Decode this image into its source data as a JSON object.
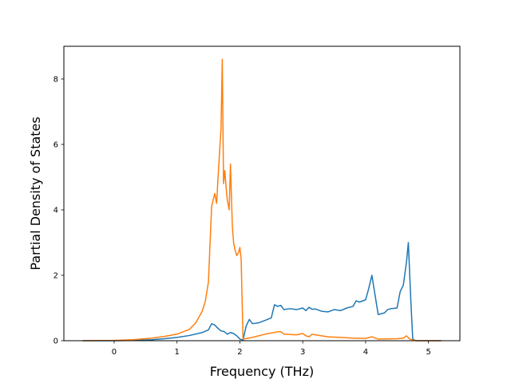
{
  "chart_data": {
    "type": "line",
    "title": "",
    "xlabel": "Frequency (THz)",
    "ylabel": "Partial Density of States",
    "xlim": [
      -0.8,
      5.5
    ],
    "ylim": [
      0,
      9
    ],
    "xticks": [
      0,
      1,
      2,
      3,
      4,
      5
    ],
    "yticks": [
      0,
      2,
      4,
      6,
      8
    ],
    "grid": false,
    "legend": "none",
    "series": [
      {
        "color": "#1f77b4",
        "x": [
          -0.5,
          0.0,
          0.3,
          0.6,
          0.8,
          1.0,
          1.2,
          1.4,
          1.5,
          1.55,
          1.6,
          1.65,
          1.7,
          1.75,
          1.8,
          1.85,
          1.9,
          1.95,
          2.0,
          2.05,
          2.1,
          2.15,
          2.2,
          2.3,
          2.4,
          2.5,
          2.55,
          2.6,
          2.65,
          2.7,
          2.8,
          2.9,
          3.0,
          3.05,
          3.1,
          3.15,
          3.2,
          3.3,
          3.4,
          3.5,
          3.6,
          3.7,
          3.8,
          3.85,
          3.9,
          4.0,
          4.05,
          4.1,
          4.15,
          4.2,
          4.3,
          4.35,
          4.4,
          4.5,
          4.55,
          4.6,
          4.65,
          4.68,
          4.72,
          4.75,
          4.8,
          5.0,
          5.2
        ],
        "y": [
          0.0,
          0.0,
          0.01,
          0.03,
          0.06,
          0.1,
          0.16,
          0.25,
          0.33,
          0.52,
          0.48,
          0.38,
          0.3,
          0.28,
          0.2,
          0.25,
          0.22,
          0.15,
          0.05,
          0.02,
          0.45,
          0.65,
          0.52,
          0.55,
          0.62,
          0.7,
          1.1,
          1.05,
          1.08,
          0.95,
          0.98,
          0.95,
          1.0,
          0.92,
          1.02,
          0.96,
          0.97,
          0.9,
          0.88,
          0.95,
          0.92,
          1.0,
          1.05,
          1.22,
          1.18,
          1.25,
          1.6,
          2.0,
          1.4,
          0.8,
          0.85,
          0.95,
          0.98,
          1.0,
          1.5,
          1.7,
          2.4,
          3.0,
          1.2,
          0.05,
          0.0,
          0.0,
          0.0
        ]
      },
      {
        "color": "#ff7f0e",
        "x": [
          -0.5,
          0.0,
          0.3,
          0.6,
          0.8,
          1.0,
          1.2,
          1.3,
          1.4,
          1.45,
          1.5,
          1.55,
          1.6,
          1.63,
          1.65,
          1.7,
          1.72,
          1.74,
          1.76,
          1.78,
          1.8,
          1.83,
          1.85,
          1.88,
          1.9,
          1.92,
          1.95,
          1.98,
          2.0,
          2.02,
          2.05,
          2.2,
          2.4,
          2.6,
          2.65,
          2.7,
          2.9,
          3.0,
          3.05,
          3.1,
          3.15,
          3.2,
          3.4,
          3.6,
          3.8,
          4.0,
          4.1,
          4.15,
          4.2,
          4.5,
          4.6,
          4.65,
          4.7,
          4.8,
          5.0,
          5.2
        ],
        "y": [
          0.0,
          0.01,
          0.03,
          0.08,
          0.13,
          0.2,
          0.35,
          0.55,
          0.9,
          1.2,
          1.8,
          4.1,
          4.5,
          4.2,
          4.9,
          6.5,
          8.6,
          4.8,
          5.2,
          4.7,
          4.3,
          4.0,
          5.4,
          3.5,
          3.0,
          2.8,
          2.6,
          2.7,
          2.85,
          2.5,
          0.05,
          0.1,
          0.2,
          0.27,
          0.28,
          0.2,
          0.18,
          0.22,
          0.15,
          0.12,
          0.2,
          0.18,
          0.12,
          0.1,
          0.08,
          0.07,
          0.12,
          0.08,
          0.05,
          0.06,
          0.08,
          0.15,
          0.05,
          0.0,
          0.0,
          0.0
        ]
      }
    ]
  }
}
